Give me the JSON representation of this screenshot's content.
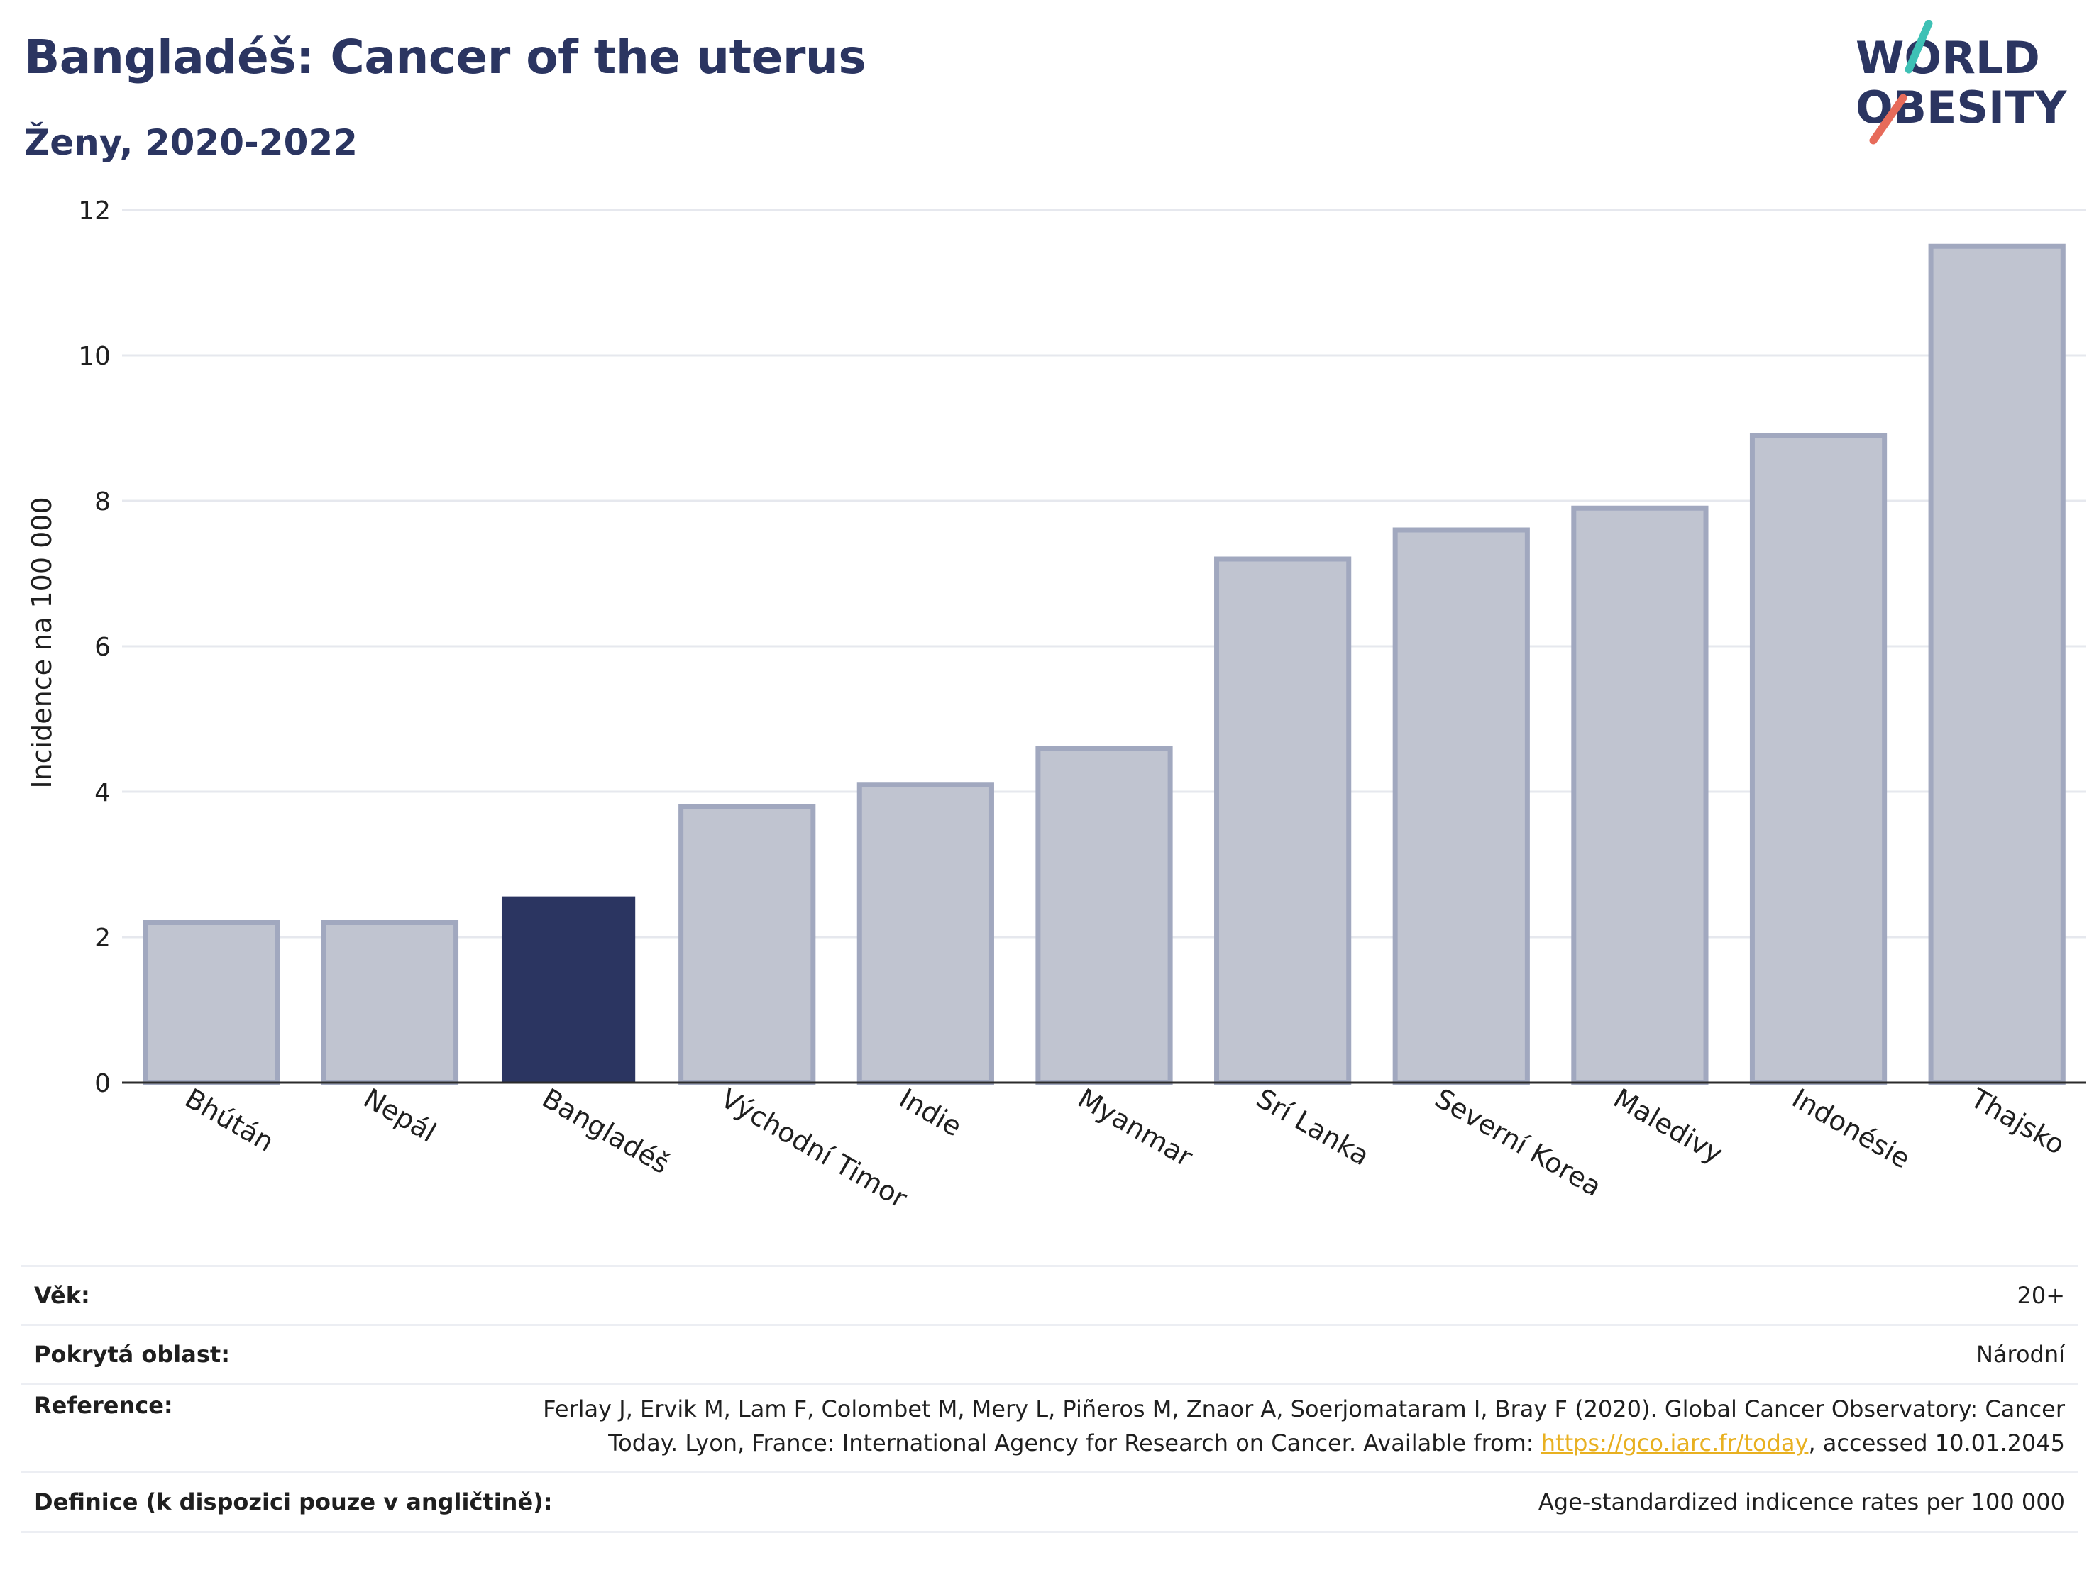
{
  "header": {
    "title": "Bangladéš: Cancer of the uterus",
    "subtitle": "Ženy, 2020-2022",
    "logo_line1": "WORLD",
    "logo_line2": "OBESITY"
  },
  "chart_data": {
    "type": "bar",
    "categories": [
      "Bhútán",
      "Nepál",
      "Bangladéš",
      "Východní Timor",
      "Indie",
      "Myanmar",
      "Srí Lanka",
      "Severní Korea",
      "Maledivy",
      "Indonésie",
      "Thajsko"
    ],
    "values": [
      2.2,
      2.2,
      2.55,
      3.8,
      4.1,
      4.6,
      7.2,
      7.6,
      7.9,
      8.9,
      11.5
    ],
    "highlight": "Bangladéš",
    "ylabel": "Incidence na 100 000",
    "ylim": [
      0,
      12
    ],
    "yticks": [
      0,
      2,
      4,
      6,
      8,
      10,
      12
    ],
    "grid": true,
    "colors": {
      "bar": "#c0c4d0",
      "bar_border": "#a1a8bf",
      "highlight": "#2b3561",
      "axis": "#2b2b2b",
      "grid": "#e6e8ee"
    }
  },
  "meta": {
    "age_label": "Věk:",
    "age_value": "20+",
    "area_label": "Pokrytá oblast:",
    "area_value": "Národní",
    "ref_label": "Reference:",
    "ref_text_1": "Ferlay J, Ervik M, Lam F, Colombet M, Mery L, Piñeros M, Znaor A, Soerjomataram I, Bray F (2020). Global Cancer Observatory: Cancer",
    "ref_text_2": "Today. Lyon, France: International Agency for Research on Cancer. Available from: ",
    "ref_link": "https://gco.iarc.fr/today",
    "ref_text_3": ", accessed 10.01.2045",
    "def_label": "Definice (k dispozici pouze v angličtině):",
    "def_value": "Age-standardized indicence rates per 100 000"
  }
}
